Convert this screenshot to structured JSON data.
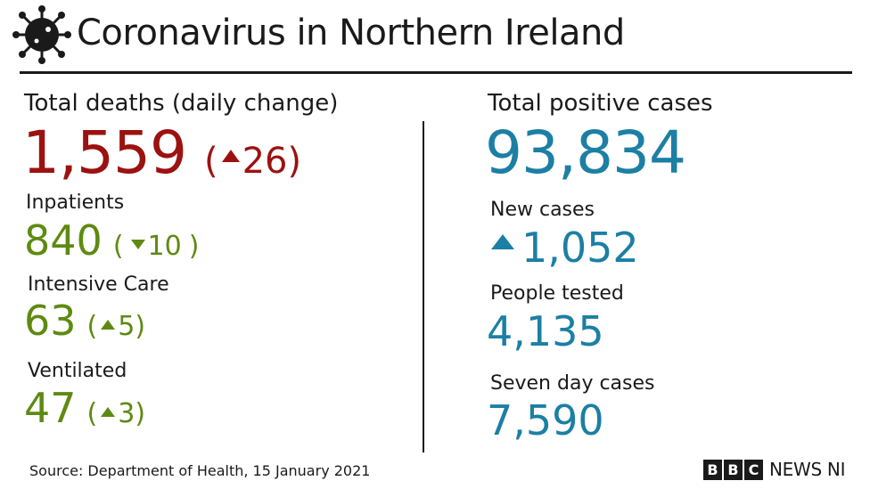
{
  "header": {
    "title": "Coronavirus in Northern Ireland",
    "icon": "coronavirus-icon"
  },
  "colors": {
    "deaths": "#9b1210",
    "hospital": "#5e8a12",
    "cases": "#1c7fa4",
    "text": "#1a1a1a"
  },
  "left": {
    "deaths": {
      "label": "Total deaths (daily change)",
      "value": "1,559",
      "open_paren": "(",
      "change": "26",
      "close_paren": ")",
      "direction": "up"
    },
    "inpatients": {
      "label": "Inpatients",
      "value": "840",
      "open_paren": "(",
      "change": "10",
      "close_paren": ")",
      "direction": "down"
    },
    "intensive_care": {
      "label": "Intensive Care",
      "value": "63",
      "open_paren": "(",
      "change": "5",
      "close_paren": ")",
      "direction": "up"
    },
    "ventilated": {
      "label": "Ventilated",
      "value": "47",
      "open_paren": "(",
      "change": "3",
      "close_paren": ")",
      "direction": "up"
    }
  },
  "right": {
    "total_cases": {
      "label": "Total positive cases",
      "value": "93,834"
    },
    "new_cases": {
      "label": "New cases",
      "value": "1,052",
      "direction": "up"
    },
    "people_tested": {
      "label": "People tested",
      "value": "4,135"
    },
    "seven_day": {
      "label": "Seven day cases",
      "value": "7,590"
    }
  },
  "footer": {
    "source": "Source: Department of Health, 15 January 2021",
    "logo_letters": [
      "B",
      "B",
      "C"
    ],
    "logo_text": "NEWS NI"
  }
}
